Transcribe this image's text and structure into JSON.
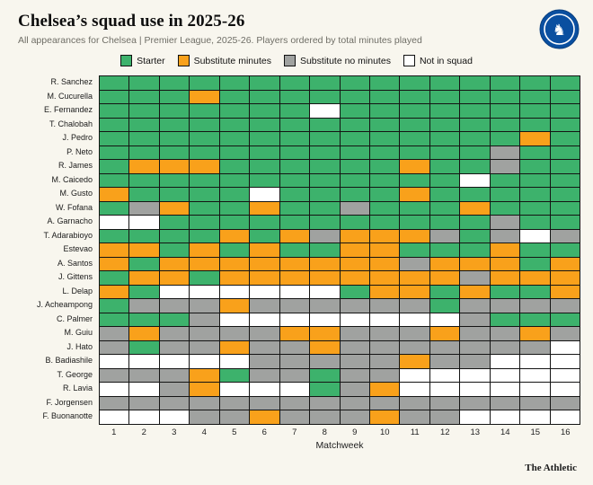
{
  "header": {
    "title": "Chelsea’s squad use in 2025-26",
    "subtitle": "All appearances for Chelsea | Premier League, 2025-26. Players ordered by total minutes played"
  },
  "badge": {
    "club": "Chelsea crest"
  },
  "legend": {
    "items": [
      {
        "key": "starter",
        "label": "Starter"
      },
      {
        "key": "substitute_minutes",
        "label": "Substitute minutes"
      },
      {
        "key": "substitute_no_minutes",
        "label": "Substitute no minutes"
      },
      {
        "key": "not_in_squad",
        "label": "Not in squad"
      }
    ]
  },
  "chart_data": {
    "type": "heatmap",
    "title": "Chelsea's squad use in 2025-26",
    "x_label": "Matchweek",
    "matchweeks": [
      1,
      2,
      3,
      4,
      5,
      6,
      7,
      8,
      9,
      10,
      11,
      12,
      13,
      14,
      15,
      16
    ],
    "status_codes": {
      "S": "starter",
      "M": "substitute_minutes",
      "B": "substitute_no_minutes",
      "N": "not_in_squad"
    },
    "colors": {
      "starter": "#3db26c",
      "substitute_minutes": "#f9a11b",
      "substitute_no_minutes": "#a0a2a0",
      "not_in_squad": "#ffffff"
    },
    "players": [
      {
        "name": "R. Sanchez",
        "weeks": "SSSSSSSSSSSSSSSS"
      },
      {
        "name": "M. Cucurella",
        "weeks": "SSSMSSSSSSSSSSSS"
      },
      {
        "name": "E. Fernandez",
        "weeks": "SSSSSSSNSSSSSSSS"
      },
      {
        "name": "T. Chalobah",
        "weeks": "SSSSSSSSSSSSSSSS"
      },
      {
        "name": "J. Pedro",
        "weeks": "SSSSSSSSSSSSSSMS"
      },
      {
        "name": "P. Neto",
        "weeks": "SSSSSSSSSSSSSBSS"
      },
      {
        "name": "R. James",
        "weeks": "SMMMSSSSSSMSSBSS"
      },
      {
        "name": "M. Caicedo",
        "weeks": "SSSSSSSSSSSSNSSS"
      },
      {
        "name": "M. Gusto",
        "weeks": "MSSSSNSSSSMSSSSS"
      },
      {
        "name": "W. Fofana",
        "weeks": "SBMSSMSSBSSSMSSS"
      },
      {
        "name": "A. Garnacho",
        "weeks": "NNSSSSSSSSSSSBSS"
      },
      {
        "name": "T. Adarabioyo",
        "weeks": "SSSSMSMBMMMBSBNB"
      },
      {
        "name": "Estevao",
        "weeks": "MMSMSMSSMMSSSMSS"
      },
      {
        "name": "A. Santos",
        "weeks": "MSMMMMMMMMBMMMSM"
      },
      {
        "name": "J. Gittens",
        "weeks": "SMMSMMMMMMMMBMMM"
      },
      {
        "name": "L. Delap",
        "weeks": "MSNNNNNNSMMSMSSM"
      },
      {
        "name": "J. Acheampong",
        "weeks": "SBBBMBBBBBBSBBBB"
      },
      {
        "name": "C. Palmer",
        "weeks": "SSSBNNNNNNNNBSSS"
      },
      {
        "name": "M. Guiu",
        "weeks": "BMBBBBMMBBBMBBMB"
      },
      {
        "name": "J. Hato",
        "weeks": "BSBBMBBMBBBBBBBN"
      },
      {
        "name": "B. Badiashile",
        "weeks": "NNNNNBBBBBMBBNNN"
      },
      {
        "name": "T. George",
        "weeks": "BBBMSBBSBBNNNNNN"
      },
      {
        "name": "R. Lavia",
        "weeks": "NNBMNNNSBMNNNNNN"
      },
      {
        "name": "F. Jorgensen",
        "weeks": "BBBBBBBBBBBBBBBB"
      },
      {
        "name": "F. Buonanotte",
        "weeks": "NNNBBMBBBMBBNNNN"
      }
    ]
  },
  "footer": {
    "brand": "The Athletic"
  }
}
